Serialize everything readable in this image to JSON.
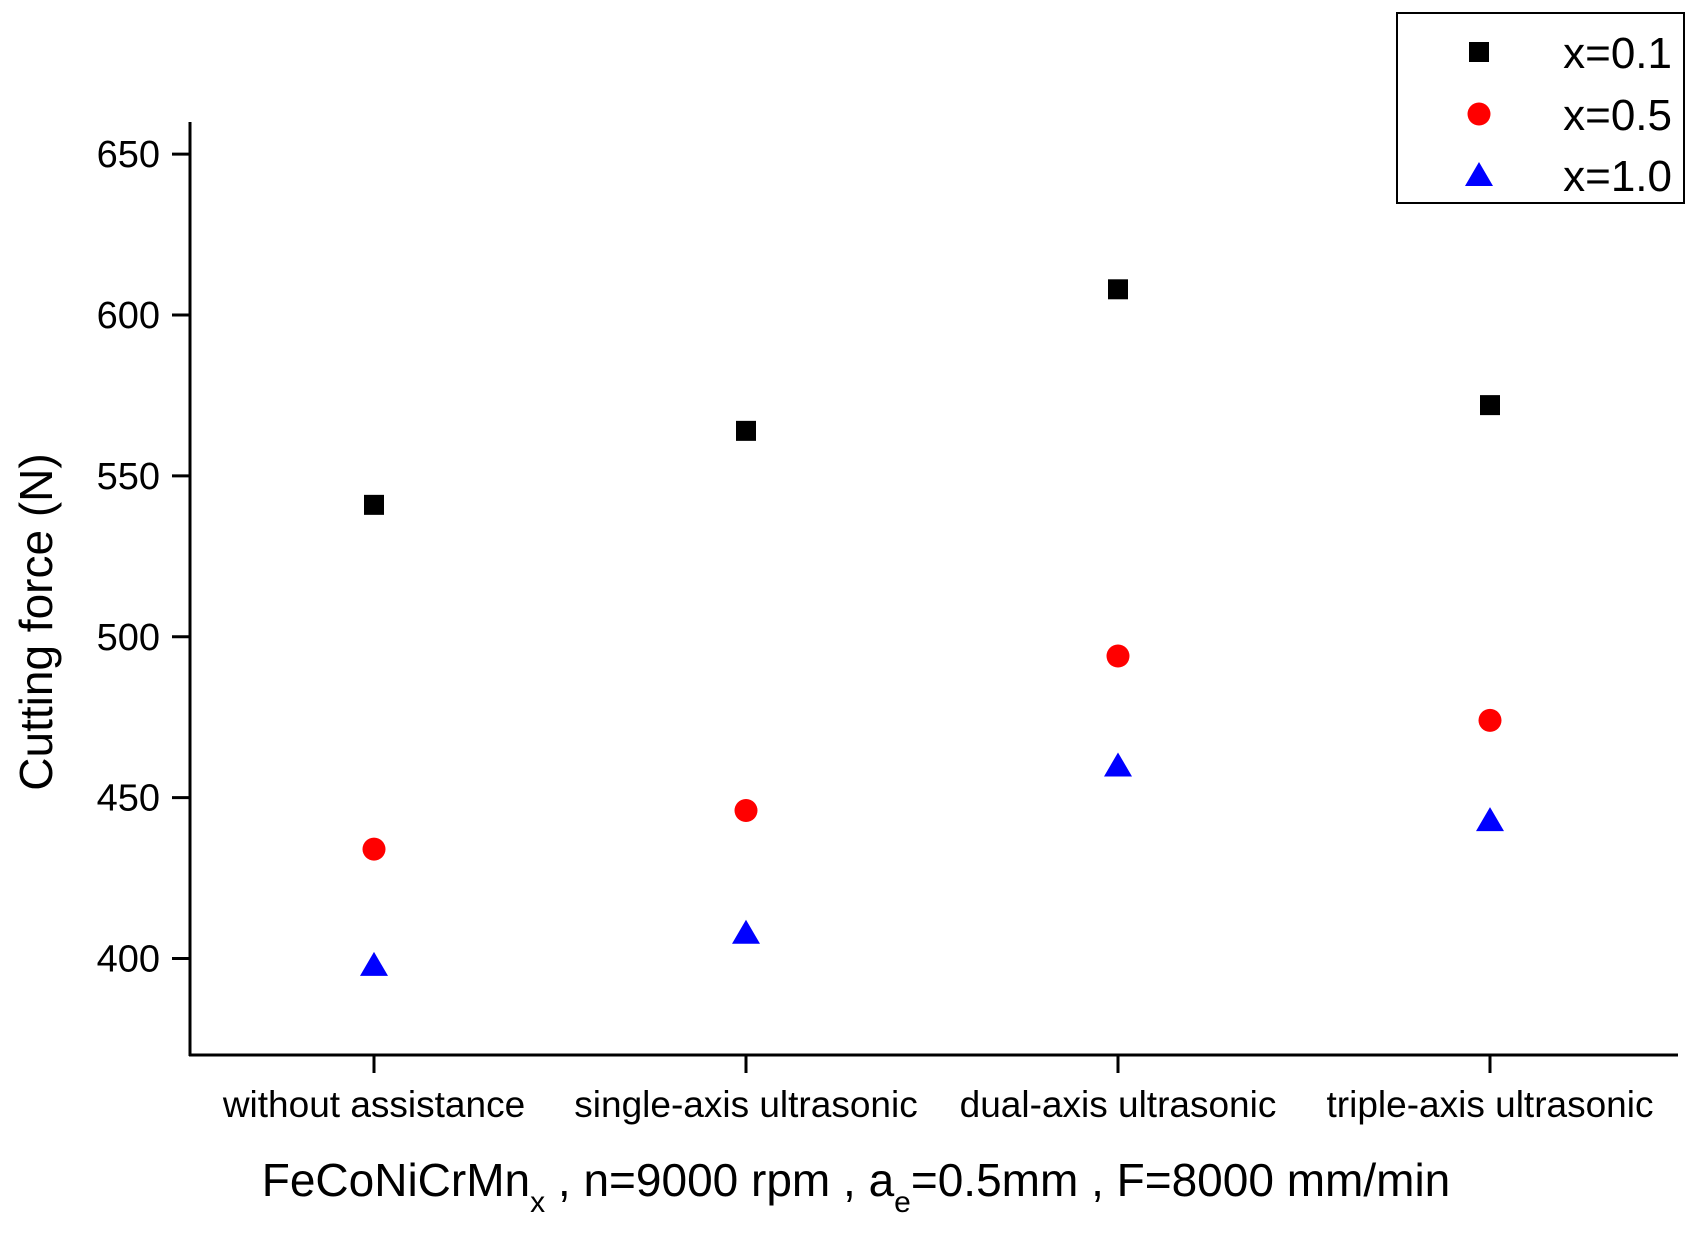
{
  "chart_data": {
    "type": "scatter",
    "categories": [
      "without assistance",
      "single-axis ultrasonic",
      "dual-axis ultrasonic",
      "triple-axis ultrasonic"
    ],
    "series": [
      {
        "name": "x=0.1",
        "marker": "square",
        "color": "#000000",
        "values": [
          541,
          564,
          608,
          572
        ]
      },
      {
        "name": "x=0.5",
        "marker": "circle",
        "color": "#ff0000",
        "values": [
          434,
          446,
          494,
          474
        ]
      },
      {
        "name": "x=1.0",
        "marker": "triangle",
        "color": "#0000ff",
        "values": [
          398,
          408,
          460,
          443
        ]
      }
    ],
    "ylabel": "Cutting force (N)",
    "xlabel": {
      "main": "FeCoNiCrMn",
      "main_sub": "x",
      "part2": " , n=9000 rpm , a",
      "part2_sub": "e",
      "part3": "=0.5mm , F=8000 mm/min"
    },
    "ylim": [
      370,
      660
    ],
    "yticks": [
      400,
      450,
      500,
      550,
      600,
      650
    ],
    "grid": false,
    "legend_position": "top-right"
  }
}
